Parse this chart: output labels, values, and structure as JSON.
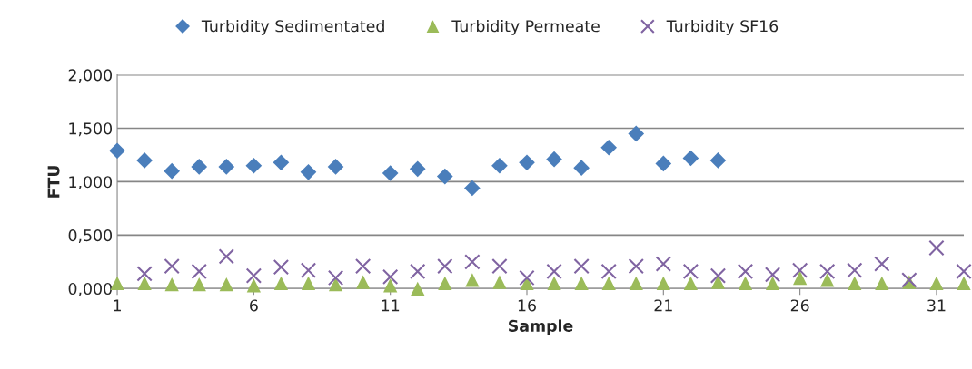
{
  "chart_data": {
    "type": "scatter",
    "xlabel": "Sample",
    "ylabel": "FTU",
    "x": [
      1,
      2,
      3,
      4,
      5,
      6,
      7,
      8,
      9,
      10,
      11,
      12,
      13,
      14,
      15,
      16,
      17,
      18,
      19,
      20,
      21,
      22,
      23,
      24,
      25,
      26,
      27,
      28,
      29,
      30,
      31,
      32
    ],
    "xlim": [
      1,
      32
    ],
    "xticks": [
      1,
      6,
      11,
      16,
      21,
      26,
      31
    ],
    "ylim": [
      0,
      2
    ],
    "yticks": [
      {
        "value": 0,
        "label": "0,000"
      },
      {
        "value": 0.5,
        "label": "0,500"
      },
      {
        "value": 1,
        "label": "1,000"
      },
      {
        "value": 1.5,
        "label": "1,500"
      },
      {
        "value": 2,
        "label": "2,000"
      }
    ],
    "grid": "y",
    "legend": "top",
    "series": [
      {
        "name": "Turbidity Sedimentated",
        "color": "#4a7ebb",
        "marker": "diamond",
        "values": [
          1.29,
          1.2,
          1.1,
          1.14,
          1.14,
          1.15,
          1.18,
          1.09,
          1.14,
          null,
          1.08,
          1.12,
          1.05,
          0.94,
          1.15,
          1.18,
          1.21,
          1.13,
          1.32,
          1.45,
          1.17,
          1.22,
          1.2,
          null,
          null,
          null,
          null,
          null,
          null,
          null,
          null,
          null
        ]
      },
      {
        "name": "Turbidity Permeate",
        "color": "#9bbb59",
        "marker": "triangle",
        "values": [
          0.05,
          0.05,
          0.04,
          0.04,
          0.04,
          0.03,
          0.05,
          0.05,
          0.04,
          0.06,
          0.03,
          0.0,
          0.05,
          0.08,
          0.06,
          0.05,
          0.05,
          0.05,
          0.05,
          0.05,
          0.05,
          0.05,
          0.06,
          0.05,
          0.05,
          0.1,
          0.08,
          0.05,
          0.05,
          0.06,
          0.05,
          0.05
        ]
      },
      {
        "name": "Turbidity SF16",
        "color": "#8064a2",
        "marker": "cross",
        "values": [
          null,
          0.14,
          0.21,
          0.16,
          0.3,
          0.12,
          0.2,
          0.17,
          0.1,
          0.21,
          0.11,
          0.16,
          0.21,
          0.25,
          0.21,
          0.1,
          0.16,
          0.21,
          0.16,
          0.21,
          0.23,
          0.16,
          0.12,
          0.16,
          0.13,
          0.17,
          0.16,
          0.17,
          0.23,
          0.08,
          0.38,
          0.16
        ]
      }
    ]
  }
}
